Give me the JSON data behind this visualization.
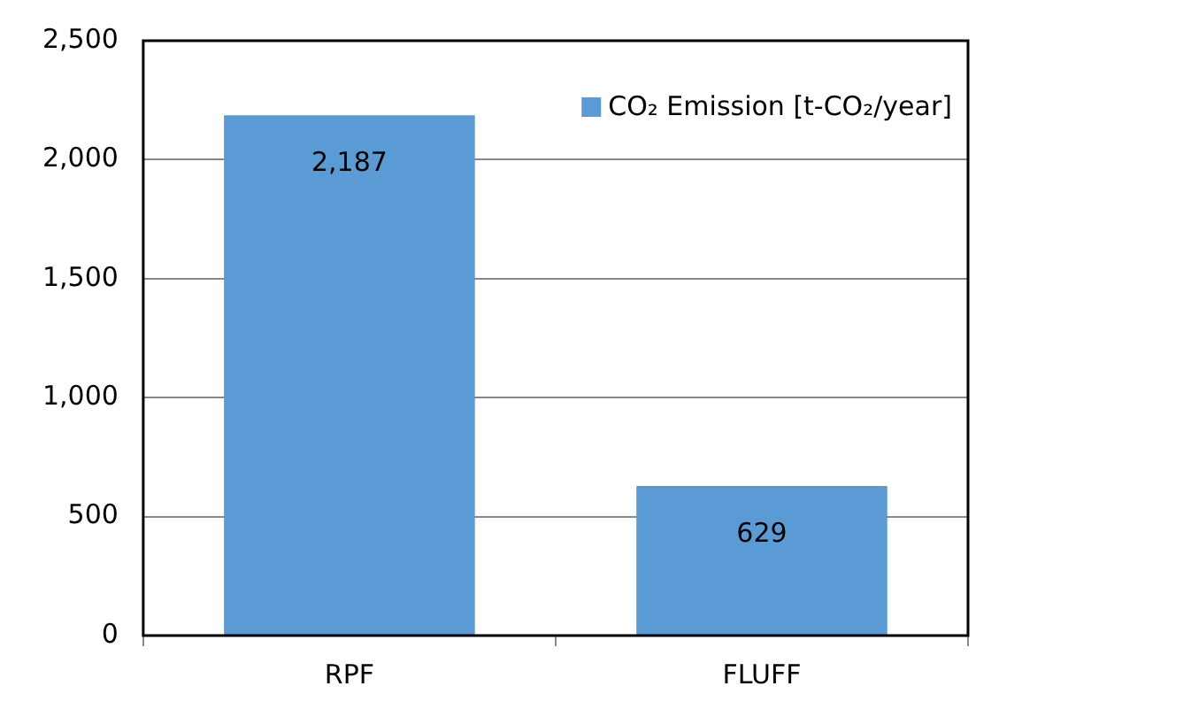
{
  "chart_data": {
    "type": "bar",
    "categories": [
      "RPF",
      "FLUFF"
    ],
    "series": [
      {
        "name": "CO₂ Emission [t-CO₂/year]",
        "color": "#5b9bd5",
        "values": [
          2187,
          629
        ],
        "value_labels": [
          "2,187",
          "629"
        ]
      }
    ],
    "ylim": [
      0,
      2500
    ],
    "yticks": [
      {
        "value": 0,
        "label": "0"
      },
      {
        "value": 500,
        "label": "500"
      },
      {
        "value": 1000,
        "label": "1,000"
      },
      {
        "value": 1500,
        "label": "1,500"
      },
      {
        "value": 2000,
        "label": "2,000"
      },
      {
        "value": 2500,
        "label": "2,500"
      }
    ],
    "grid": "y",
    "legend": "top right"
  }
}
